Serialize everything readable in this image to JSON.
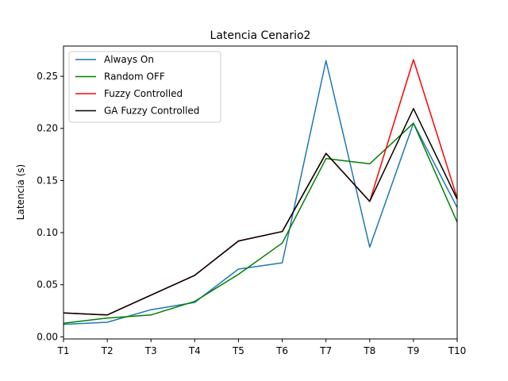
{
  "chart_data": {
    "type": "line",
    "title": "Latencia Cenario2",
    "xlabel": "",
    "ylabel": "Latencia (s)",
    "categories": [
      "T1",
      "T2",
      "T3",
      "T4",
      "T5",
      "T6",
      "T7",
      "T8",
      "T9",
      "T10"
    ],
    "ylim": [
      -0.002,
      0.279
    ],
    "yticks": [
      0.0,
      0.05,
      0.1,
      0.15,
      0.2,
      0.25
    ],
    "ytick_labels": [
      "0.00",
      "0.05",
      "0.10",
      "0.15",
      "0.20",
      "0.25"
    ],
    "grid": false,
    "legend_position": "upper-left",
    "series": [
      {
        "name": "Always On",
        "color": "#1f77b4",
        "values": [
          0.012,
          0.014,
          0.026,
          0.033,
          0.065,
          0.071,
          0.265,
          0.086,
          0.205,
          0.124
        ]
      },
      {
        "name": "Random OFF",
        "color": "#008000",
        "values": [
          0.013,
          0.018,
          0.021,
          0.034,
          0.06,
          0.09,
          0.171,
          0.166,
          0.205,
          0.11
        ]
      },
      {
        "name": "Fuzzy Controlled",
        "color": "#ff0000",
        "values": [
          0.023,
          0.021,
          0.04,
          0.059,
          0.092,
          0.101,
          0.176,
          0.13,
          0.266,
          0.133
        ]
      },
      {
        "name": "GA Fuzzy Controlled",
        "color": "#000000",
        "values": [
          0.023,
          0.021,
          0.04,
          0.059,
          0.092,
          0.101,
          0.176,
          0.13,
          0.219,
          0.132
        ]
      }
    ]
  }
}
